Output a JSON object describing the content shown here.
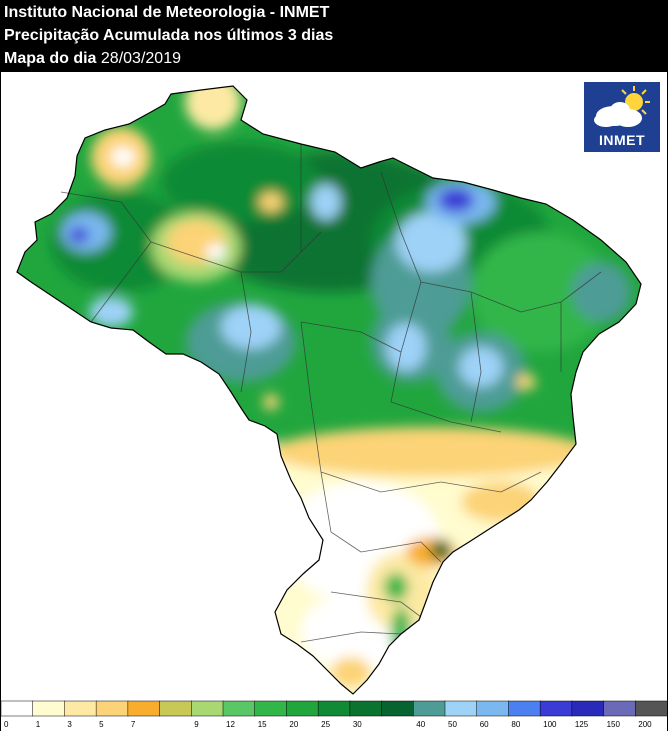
{
  "header": {
    "line1": "Instituto Nacional de Meteorologia - INMET",
    "line2": "Precipitação Acumulada nos últimos 3 dias",
    "line3_label": "Mapa do dia",
    "line3_date": "28/03/2019"
  },
  "logo": {
    "text": "INMET",
    "icon": "sun-cloud-icon"
  },
  "legend": {
    "bins": [
      {
        "label": "0",
        "color": "#ffffff"
      },
      {
        "label": "1",
        "color": "#fffccf"
      },
      {
        "label": "3",
        "color": "#fde9a3"
      },
      {
        "label": "5",
        "color": "#fcd376"
      },
      {
        "label": "7",
        "color": "#f8ae2c"
      },
      {
        "label": "",
        "color": "#c7c855"
      },
      {
        "label": "9",
        "color": "#a9d873"
      },
      {
        "label": "12",
        "color": "#5ac766"
      },
      {
        "label": "15",
        "color": "#32b64a"
      },
      {
        "label": "20",
        "color": "#21a63e"
      },
      {
        "label": "25",
        "color": "#108a34"
      },
      {
        "label": "30",
        "color": "#0a7330"
      },
      {
        "label": "",
        "color": "#076330"
      },
      {
        "label": "40",
        "color": "#4e9c95"
      },
      {
        "label": "50",
        "color": "#9ed2f7"
      },
      {
        "label": "60",
        "color": "#7ab8ef"
      },
      {
        "label": "80",
        "color": "#4c7ff0"
      },
      {
        "label": "100",
        "color": "#3b3bd6"
      },
      {
        "label": "125",
        "color": "#2a2aba"
      },
      {
        "label": "150",
        "color": "#6a6ab8"
      },
      {
        "label": "200",
        "color": "#555555"
      }
    ]
  }
}
